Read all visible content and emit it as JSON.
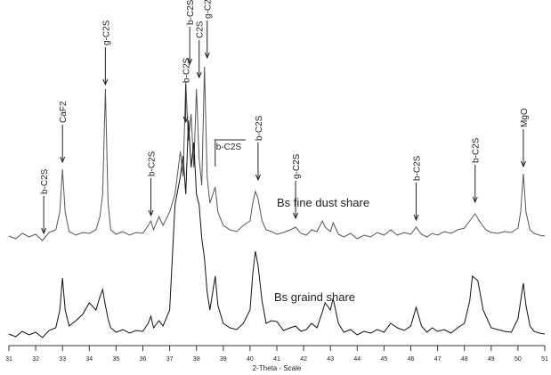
{
  "chart_data": {
    "type": "line",
    "x_label": "2-Theta - Scale",
    "xlim": [
      31,
      51
    ],
    "xticks": [
      31,
      32,
      33,
      34,
      35,
      36,
      37,
      38,
      39,
      40,
      41,
      42,
      43,
      44,
      45,
      46,
      47,
      48,
      49,
      50,
      51
    ],
    "ylim": [
      0,
      380
    ],
    "series": [
      {
        "name": "Bs fine dust share",
        "color": "#555555",
        "x": [
          31,
          31.25,
          31.5,
          31.75,
          32,
          32.25,
          32.5,
          32.75,
          32.9,
          33.0,
          33.1,
          33.25,
          33.5,
          33.75,
          34,
          34.25,
          34.4,
          34.5,
          34.6,
          34.7,
          34.8,
          35,
          35.25,
          35.5,
          35.75,
          36,
          36.2,
          36.3,
          36.4,
          36.6,
          36.75,
          37,
          37.2,
          37.4,
          37.5,
          37.6,
          37.7,
          37.8,
          37.9,
          38.0,
          38.1,
          38.2,
          38.3,
          38.4,
          38.5,
          38.7,
          38.8,
          39,
          39.25,
          39.5,
          39.75,
          40,
          40.1,
          40.2,
          40.3,
          40.45,
          40.6,
          40.8,
          41,
          41.25,
          41.5,
          41.7,
          41.9,
          42.1,
          42.3,
          42.5,
          42.7,
          42.8,
          43,
          43.1,
          43.3,
          43.5,
          43.75,
          44,
          44.25,
          44.5,
          44.75,
          45,
          45.25,
          45.5,
          45.75,
          46,
          46.2,
          46.4,
          46.6,
          46.8,
          47,
          47.25,
          47.5,
          47.75,
          48,
          48.2,
          48.4,
          48.6,
          48.8,
          49,
          49.25,
          49.5,
          49.75,
          50,
          50.1,
          50.2,
          50.3,
          50.45,
          50.6,
          50.8,
          51
        ],
        "values": [
          123,
          120,
          126,
          122,
          125,
          118,
          127,
          130,
          150,
          198,
          150,
          128,
          124,
          127,
          126,
          130,
          145,
          170,
          288,
          160,
          130,
          125,
          128,
          124,
          127,
          126,
          135,
          140,
          130,
          145,
          135,
          150,
          170,
          218,
          190,
          296,
          230,
          260,
          200,
          288,
          210,
          180,
          313,
          190,
          160,
          178,
          150,
          135,
          130,
          128,
          135,
          140,
          160,
          173,
          165,
          140,
          130,
          128,
          125,
          127,
          130,
          133,
          126,
          124,
          130,
          128,
          140,
          133,
          128,
          138,
          125,
          122,
          126,
          120,
          124,
          122,
          127,
          124,
          130,
          124,
          127,
          125,
          133,
          125,
          122,
          126,
          124,
          128,
          126,
          130,
          132,
          140,
          148,
          138,
          130,
          127,
          126,
          128,
          127,
          132,
          150,
          193,
          150,
          130,
          126,
          124,
          123
        ]
      },
      {
        "name": "Bs graind share",
        "color": "#111111",
        "x": [
          31,
          31.25,
          31.5,
          31.75,
          32,
          32.25,
          32.5,
          32.75,
          32.9,
          33.0,
          33.1,
          33.25,
          33.5,
          33.75,
          34,
          34.25,
          34.4,
          34.5,
          34.6,
          34.7,
          34.8,
          35,
          35.25,
          35.5,
          35.75,
          36,
          36.2,
          36.3,
          36.4,
          36.6,
          36.75,
          37,
          37.2,
          37.4,
          37.5,
          37.6,
          37.7,
          37.8,
          37.9,
          38.0,
          38.1,
          38.2,
          38.3,
          38.4,
          38.5,
          38.7,
          38.8,
          39,
          39.25,
          39.5,
          39.75,
          40,
          40.1,
          40.2,
          40.3,
          40.45,
          40.6,
          40.8,
          41,
          41.25,
          41.5,
          41.7,
          41.9,
          42.1,
          42.3,
          42.5,
          42.7,
          42.8,
          43,
          43.1,
          43.3,
          43.5,
          43.75,
          44,
          44.25,
          44.5,
          44.75,
          45,
          45.25,
          45.5,
          45.75,
          46,
          46.2,
          46.4,
          46.6,
          46.8,
          47,
          47.25,
          47.5,
          47.75,
          48,
          48.2,
          48.3,
          48.5,
          48.7,
          49,
          49.25,
          49.5,
          49.75,
          50,
          50.1,
          50.2,
          50.3,
          50.45,
          50.6,
          50.8,
          51
        ],
        "values": [
          13,
          10,
          16,
          12,
          15,
          9,
          17,
          20,
          40,
          76,
          40,
          22,
          28,
          35,
          48,
          40,
          55,
          63,
          45,
          30,
          20,
          15,
          18,
          14,
          17,
          16,
          25,
          33,
          20,
          28,
          22,
          40,
          158,
          190,
          213,
          170,
          253,
          200,
          228,
          170,
          158,
          120,
          98,
          60,
          40,
          78,
          45,
          25,
          20,
          18,
          25,
          40,
          80,
          106,
          90,
          50,
          25,
          28,
          27,
          17,
          20,
          22,
          16,
          18,
          25,
          20,
          38,
          48,
          40,
          53,
          25,
          15,
          18,
          12,
          16,
          14,
          18,
          15,
          25,
          20,
          17,
          22,
          43,
          22,
          15,
          20,
          16,
          18,
          14,
          20,
          25,
          50,
          78,
          73,
          40,
          20,
          18,
          16,
          15,
          30,
          50,
          70,
          45,
          22,
          16,
          14,
          13
        ]
      }
    ],
    "annotations": [
      {
        "text": "b-C2S",
        "x": 32.3,
        "y": 123
      },
      {
        "text": "CaF2",
        "x": 33.0,
        "y": 203
      },
      {
        "text": "g-C2S",
        "x": 34.6,
        "y": 290
      },
      {
        "text": "b-C2S",
        "x": 36.3,
        "y": 143
      },
      {
        "text": "b-C2S",
        "x": 37.6,
        "y": 248
      },
      {
        "text": "b-C2S",
        "x": 37.75,
        "y": 313
      },
      {
        "text": "C2S",
        "x": 38.1,
        "y": 298
      },
      {
        "text": "g-C2S",
        "x": 38.4,
        "y": 320
      },
      {
        "text": "b-C2S",
        "x": 38.7,
        "y": 198,
        "orientation": "horizontal"
      },
      {
        "text": "b-C2S",
        "x": 40.3,
        "y": 183
      },
      {
        "text": "g-C2S",
        "x": 41.7,
        "y": 140
      },
      {
        "text": "b-C2S",
        "x": 46.2,
        "y": 138
      },
      {
        "text": "b-C2S",
        "x": 48.4,
        "y": 158
      },
      {
        "text": "MgO",
        "x": 50.2,
        "y": 198
      }
    ]
  }
}
